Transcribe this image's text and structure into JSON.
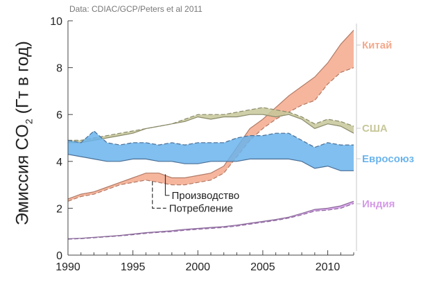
{
  "source_note": "Data: CDIAC/GCP/Peters et al 2011",
  "chart_data": {
    "type": "area",
    "ylabel_main": "Эмиссия CO",
    "ylabel_sub": "2",
    "ylabel_unit": " (Гт в год)",
    "xlim": [
      1990,
      2012
    ],
    "ylim": [
      0,
      10
    ],
    "x_ticks": [
      1990,
      1995,
      2000,
      2005,
      2010
    ],
    "y_ticks": [
      0,
      2,
      4,
      6,
      8,
      10
    ],
    "grid": false,
    "legend_position": "right",
    "line_legend": [
      {
        "label": "Производство",
        "style": "solid"
      },
      {
        "label": "Потребление",
        "style": "dashed"
      }
    ],
    "x": [
      1990,
      1991,
      1992,
      1993,
      1994,
      1995,
      1996,
      1997,
      1998,
      1999,
      2000,
      2001,
      2002,
      2003,
      2004,
      2005,
      2006,
      2007,
      2008,
      2009,
      2010,
      2011,
      2012
    ],
    "series": [
      {
        "name": "Китай",
        "color": "#f4a98c",
        "edge": "#b07a66",
        "production": [
          2.4,
          2.6,
          2.7,
          2.9,
          3.1,
          3.3,
          3.5,
          3.5,
          3.3,
          3.3,
          3.4,
          3.5,
          3.8,
          4.6,
          5.4,
          5.8,
          6.3,
          6.8,
          7.2,
          7.6,
          8.2,
          9.0,
          9.6
        ],
        "consumption": [
          2.3,
          2.5,
          2.6,
          2.8,
          3.0,
          3.1,
          3.2,
          3.1,
          3.0,
          3.0,
          3.1,
          3.2,
          3.5,
          4.2,
          4.9,
          5.4,
          5.8,
          6.1,
          6.4,
          6.6,
          7.3,
          7.8,
          8.0
        ]
      },
      {
        "name": "США",
        "color": "#c7c79a",
        "edge": "#8a8a6a",
        "production": [
          4.8,
          4.8,
          4.9,
          5.0,
          5.1,
          5.2,
          5.4,
          5.5,
          5.6,
          5.7,
          5.9,
          5.8,
          5.9,
          5.9,
          6.0,
          6.0,
          5.9,
          6.0,
          5.8,
          5.4,
          5.6,
          5.5,
          5.2
        ],
        "consumption": [
          4.9,
          4.9,
          5.0,
          5.1,
          5.2,
          5.3,
          5.4,
          5.5,
          5.6,
          5.8,
          6.0,
          6.0,
          6.0,
          6.1,
          6.2,
          6.3,
          6.2,
          6.1,
          5.9,
          5.6,
          5.8,
          5.7,
          5.5
        ]
      },
      {
        "name": "Евросоюз",
        "color": "#6ab4ec",
        "edge": "#4a6e96",
        "production": [
          4.3,
          4.2,
          4.1,
          4.0,
          4.0,
          4.1,
          4.1,
          4.0,
          4.0,
          3.9,
          3.9,
          4.0,
          4.0,
          4.0,
          4.1,
          4.1,
          4.1,
          4.1,
          4.0,
          3.7,
          3.8,
          3.6,
          3.6
        ],
        "consumption": [
          4.9,
          4.8,
          5.3,
          4.8,
          4.7,
          4.8,
          4.8,
          4.7,
          4.8,
          4.7,
          4.8,
          4.8,
          4.8,
          5.0,
          5.1,
          5.1,
          5.2,
          5.2,
          4.9,
          4.6,
          4.8,
          4.7,
          4.7
        ]
      },
      {
        "name": "Индия",
        "color": "#d59ae8",
        "edge": "#8a6a9a",
        "production": [
          0.7,
          0.72,
          0.76,
          0.8,
          0.84,
          0.9,
          0.96,
          1.0,
          1.04,
          1.1,
          1.14,
          1.18,
          1.22,
          1.28,
          1.36,
          1.44,
          1.52,
          1.62,
          1.78,
          1.95,
          2.0,
          2.1,
          2.3
        ],
        "consumption": [
          0.68,
          0.7,
          0.74,
          0.78,
          0.82,
          0.87,
          0.93,
          0.97,
          1.0,
          1.06,
          1.1,
          1.14,
          1.18,
          1.24,
          1.32,
          1.4,
          1.48,
          1.58,
          1.72,
          1.88,
          1.92,
          2.0,
          2.2
        ]
      }
    ]
  }
}
